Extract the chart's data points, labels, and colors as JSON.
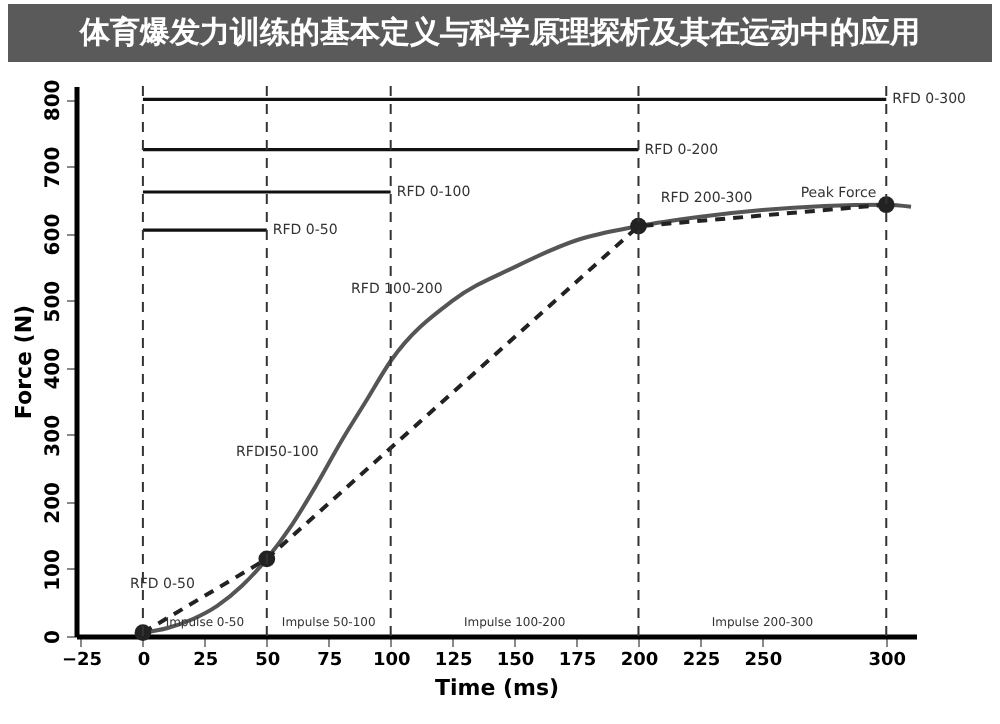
{
  "chart_data": {
    "type": "line",
    "title": "体育爆发力训练的基本定义与科学原理探析及其在运动中的应用",
    "xlabel": "Time (ms)",
    "ylabel": "Force (N)",
    "xlim": [
      -27,
      312
    ],
    "xticks": [
      -25,
      0,
      25,
      50,
      75,
      100,
      125,
      150,
      175,
      200,
      225,
      250,
      300
    ],
    "ylim": [
      0,
      820
    ],
    "yticks": [
      0,
      100,
      200,
      300,
      400,
      500,
      600,
      700,
      800
    ],
    "grid": false,
    "series": [
      {
        "color": "#555555",
        "line_style": "solid",
        "marker": "none",
        "x": [
          0,
          10,
          20,
          30,
          40,
          50,
          60,
          70,
          80,
          90,
          100,
          125,
          150,
          175,
          200,
          225,
          250,
          275,
          300,
          310
        ],
        "values": [
          5,
          12,
          25,
          45,
          75,
          115,
          165,
          225,
          290,
          350,
          410,
          500,
          550,
          590,
          611,
          625,
          635,
          641,
          643,
          640
        ]
      },
      {
        "color": "#222222",
        "line_style": "dashed",
        "marker": "circle",
        "x": [
          0,
          50,
          200,
          300
        ],
        "values": [
          5,
          115,
          611,
          643
        ]
      },
      {
        "name": "RFD 0-300",
        "color": "#111111",
        "line_style": "solid",
        "marker": "none",
        "x": [
          0,
          300
        ],
        "values": [
          800,
          800
        ]
      },
      {
        "name": "RFD 0-200",
        "color": "#111111",
        "line_style": "solid",
        "marker": "none",
        "x": [
          0,
          200
        ],
        "values": [
          725,
          725
        ]
      },
      {
        "name": "RFD 0-100",
        "color": "#111111",
        "line_style": "solid",
        "marker": "none",
        "x": [
          0,
          100
        ],
        "values": [
          662,
          662
        ]
      },
      {
        "name": "RFD 0-50",
        "color": "#111111",
        "line_style": "solid",
        "marker": "none",
        "x": [
          0,
          50
        ],
        "values": [
          605,
          605
        ]
      }
    ],
    "ref_lines": [
      {
        "axis": "x",
        "value": 0,
        "line_style": "dashed",
        "color": "#333333"
      },
      {
        "axis": "x",
        "value": 50,
        "line_style": "dashed",
        "color": "#333333"
      },
      {
        "axis": "x",
        "value": 100,
        "line_style": "dashed",
        "color": "#333333"
      },
      {
        "axis": "x",
        "value": 200,
        "line_style": "dashed",
        "color": "#333333"
      },
      {
        "axis": "x",
        "value": 300,
        "line_style": "dashed",
        "color": "#333333"
      }
    ],
    "annotations": [
      {
        "text": "RFD 0-50",
        "x": 25,
        "y": 60
      },
      {
        "text": "RFD 50-100",
        "x": 75,
        "y": 257
      },
      {
        "text": "RFD 100-200",
        "x": 125,
        "y": 500
      },
      {
        "text": "RFD 200-300",
        "x": 250,
        "y": 635
      },
      {
        "text": "Peak Force",
        "x": 300,
        "y": 643
      },
      "Impulse 0-50",
      "Impulse 50-100",
      "Impulse 100-200",
      "Impulse 200-300"
    ]
  }
}
